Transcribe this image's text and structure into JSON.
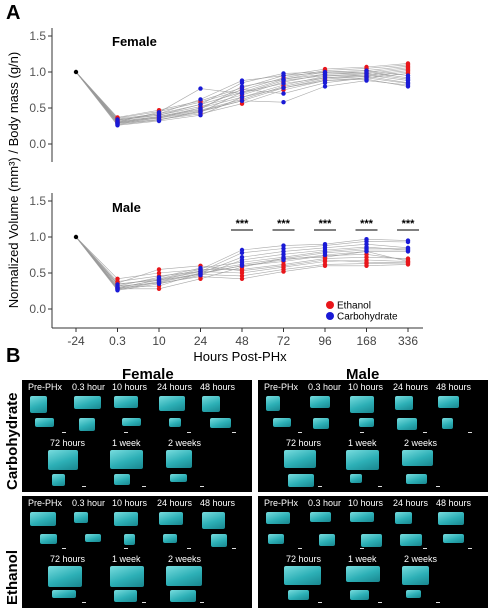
{
  "panel_a_letter": "A",
  "panel_b_letter": "B",
  "chart_data": {
    "type": "line",
    "ylabel": "Normalized Volume (mm³) / Body mass (g/n)",
    "xlabel": "Hours Post-PHx",
    "categories": [
      "-24",
      "0.3",
      "10",
      "24",
      "48",
      "72",
      "96",
      "168",
      "336"
    ],
    "yticks": [
      "0.0",
      "0.5",
      "1.0",
      "1.5"
    ],
    "ylim": [
      -0.2,
      1.6
    ],
    "legend": {
      "placement": "bottom-right",
      "entries": [
        {
          "label": "Ethanol",
          "color": "#e8161b"
        },
        {
          "label": "Carbohydrate",
          "color": "#1a1ad6"
        }
      ]
    },
    "panels": [
      {
        "title": "Female",
        "significance": [],
        "series": [
          {
            "group": "Ethanol",
            "values": [
              1.0,
              0.36,
              0.45,
              0.58,
              0.75,
              0.92,
              1.02,
              1.05,
              1.1
            ]
          },
          {
            "group": "Ethanol",
            "values": [
              1.0,
              0.33,
              0.4,
              0.52,
              0.68,
              0.86,
              0.97,
              1.0,
              1.06
            ]
          },
          {
            "group": "Ethanol",
            "values": [
              1.0,
              0.31,
              0.37,
              0.47,
              0.62,
              0.8,
              0.92,
              0.96,
              1.02
            ]
          },
          {
            "group": "Ethanol",
            "values": [
              1.0,
              0.29,
              0.34,
              0.42,
              0.56,
              0.75,
              0.88,
              0.92,
              0.98
            ]
          },
          {
            "group": "Ethanol",
            "values": [
              1.0,
              0.35,
              0.42,
              0.55,
              0.72,
              0.9,
              1.0,
              1.02,
              1.08
            ]
          },
          {
            "group": "Ethanol",
            "values": [
              1.0,
              0.32,
              0.38,
              0.5,
              0.65,
              0.82,
              0.94,
              0.98,
              1.04
            ]
          },
          {
            "group": "Ethanol",
            "values": [
              1.0,
              0.3,
              0.36,
              0.45,
              0.6,
              0.78,
              0.9,
              0.94,
              1.0
            ]
          },
          {
            "group": "Ethanol",
            "values": [
              1.0,
              0.37,
              0.47,
              0.6,
              0.78,
              0.95,
              1.04,
              1.07,
              1.12
            ]
          },
          {
            "group": "Carbohydrate",
            "values": [
              1.0,
              0.34,
              0.4,
              0.55,
              0.85,
              0.98,
              1.0,
              1.02,
              0.95
            ]
          },
          {
            "group": "Carbohydrate",
            "values": [
              1.0,
              0.3,
              0.38,
              0.48,
              0.8,
              0.9,
              0.97,
              0.98,
              0.9
            ]
          },
          {
            "group": "Carbohydrate",
            "values": [
              1.0,
              0.28,
              0.34,
              0.44,
              0.72,
              0.84,
              0.92,
              0.94,
              0.85
            ]
          },
          {
            "group": "Carbohydrate",
            "values": [
              1.0,
              0.26,
              0.32,
              0.4,
              0.65,
              0.78,
              0.88,
              0.9,
              0.8
            ]
          },
          {
            "group": "Carbohydrate",
            "values": [
              1.0,
              0.33,
              0.42,
              0.62,
              0.88,
              0.95,
              0.99,
              1.0,
              0.92
            ]
          },
          {
            "group": "Carbohydrate",
            "values": [
              1.0,
              0.29,
              0.36,
              0.5,
              0.76,
              0.7,
              0.85,
              0.92,
              0.84
            ]
          },
          {
            "group": "Carbohydrate",
            "values": [
              1.0,
              0.27,
              0.33,
              0.46,
              0.6,
              0.58,
              0.8,
              0.88,
              0.82
            ]
          },
          {
            "group": "Carbohydrate",
            "values": [
              1.0,
              0.31,
              0.44,
              0.77,
              0.7,
              0.88,
              0.95,
              0.96,
              0.88
            ]
          }
        ]
      },
      {
        "title": "Male",
        "significance": [
          {
            "at": "48",
            "label": "***"
          },
          {
            "at": "72",
            "label": "***"
          },
          {
            "at": "96",
            "label": "***"
          },
          {
            "at": "168",
            "label": "***"
          },
          {
            "at": "336",
            "label": "***"
          }
        ],
        "series": [
          {
            "group": "Ethanol",
            "values": [
              1.0,
              0.42,
              0.5,
              0.55,
              0.55,
              0.62,
              0.7,
              0.72,
              0.7
            ]
          },
          {
            "group": "Ethanol",
            "values": [
              1.0,
              0.38,
              0.46,
              0.52,
              0.5,
              0.58,
              0.66,
              0.68,
              0.66
            ]
          },
          {
            "group": "Ethanol",
            "values": [
              1.0,
              0.35,
              0.4,
              0.48,
              0.46,
              0.55,
              0.62,
              0.63,
              0.64
            ]
          },
          {
            "group": "Ethanol",
            "values": [
              1.0,
              0.32,
              0.36,
              0.45,
              0.42,
              0.52,
              0.6,
              0.6,
              0.62
            ]
          },
          {
            "group": "Ethanol",
            "values": [
              1.0,
              0.3,
              0.32,
              0.5,
              0.6,
              0.66,
              0.74,
              0.76,
              0.68
            ]
          },
          {
            "group": "Ethanol",
            "values": [
              1.0,
              0.28,
              0.28,
              0.42,
              0.58,
              0.7,
              0.72,
              0.8,
              0.66
            ]
          },
          {
            "group": "Ethanol",
            "values": [
              1.0,
              0.36,
              0.55,
              0.6,
              0.53,
              0.6,
              0.68,
              0.65,
              0.64
            ]
          },
          {
            "group": "Carbohydrate",
            "values": [
              1.0,
              0.34,
              0.42,
              0.55,
              0.82,
              0.88,
              0.9,
              0.97,
              0.95
            ]
          },
          {
            "group": "Carbohydrate",
            "values": [
              1.0,
              0.3,
              0.4,
              0.52,
              0.78,
              0.84,
              0.88,
              0.94,
              0.93
            ]
          },
          {
            "group": "Carbohydrate",
            "values": [
              1.0,
              0.28,
              0.38,
              0.5,
              0.72,
              0.8,
              0.85,
              0.9,
              0.85
            ]
          },
          {
            "group": "Carbohydrate",
            "values": [
              1.0,
              0.26,
              0.35,
              0.47,
              0.68,
              0.76,
              0.82,
              0.86,
              0.82
            ]
          },
          {
            "group": "Carbohydrate",
            "values": [
              1.0,
              0.32,
              0.44,
              0.57,
              0.65,
              0.72,
              0.8,
              0.84,
              0.84
            ]
          },
          {
            "group": "Carbohydrate",
            "values": [
              1.0,
              0.29,
              0.41,
              0.53,
              0.62,
              0.7,
              0.78,
              0.82,
              0.82
            ]
          },
          {
            "group": "Carbohydrate",
            "values": [
              1.0,
              0.27,
              0.37,
              0.49,
              0.6,
              0.68,
              0.75,
              0.8,
              0.8
            ]
          }
        ]
      }
    ]
  },
  "panel_b": {
    "columns": [
      "Female",
      "Male"
    ],
    "rows": [
      "Carbohydrate",
      "Ethanol"
    ],
    "cell_timepoints_row1": [
      "Pre-PHx",
      "0.3 hour",
      "10 hours",
      "24 hours",
      "48 hours"
    ],
    "cell_timepoints_row2": [
      "72 hours",
      "1 week",
      "2 weeks"
    ],
    "background": "#000000",
    "render_color": "#2fb9c0"
  }
}
